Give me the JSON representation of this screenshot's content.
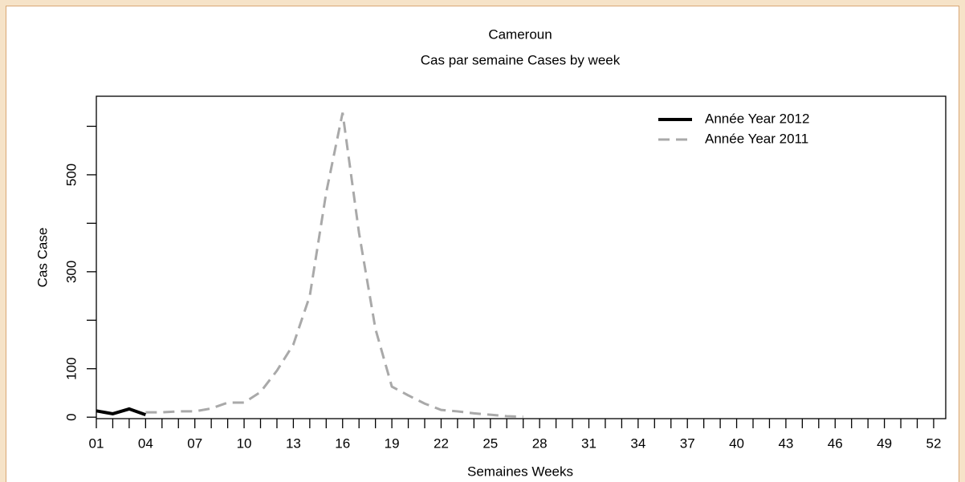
{
  "chart_data": {
    "type": "line",
    "title": "Cameroun",
    "subtitle": "Cas par semaine Cases by week",
    "x_label": "Semaines Weeks",
    "y_label": "Cas Case",
    "categories": [
      "01",
      null,
      null,
      "04",
      null,
      null,
      "07",
      null,
      null,
      "10",
      null,
      null,
      "13",
      null,
      null,
      "16",
      null,
      null,
      "19",
      null,
      null,
      "22",
      null,
      null,
      "25",
      null,
      null,
      "28",
      null,
      null,
      "31",
      null,
      null,
      "34",
      null,
      null,
      "37",
      null,
      null,
      "40",
      null,
      null,
      "43",
      null,
      null,
      "46",
      null,
      null,
      "49",
      null,
      null,
      "52"
    ],
    "series": [
      {
        "name": "Année Year 2012",
        "color": "#000000",
        "dash": false,
        "values": [
          13,
          7,
          17,
          5,
          null,
          null,
          null,
          null,
          null,
          null,
          null,
          null,
          null,
          null,
          null,
          null,
          null,
          null,
          null,
          null,
          null,
          null,
          null,
          null,
          null,
          null,
          null,
          null,
          null,
          null,
          null,
          null,
          null,
          null,
          null,
          null,
          null,
          null,
          null,
          null,
          null,
          null,
          null,
          null,
          null,
          null,
          null,
          null,
          null,
          null,
          null,
          null
        ]
      },
      {
        "name": "Année Year 2011",
        "color": "#a9a9a9",
        "dash": true,
        "values": [
          null,
          null,
          null,
          10,
          10,
          12,
          12,
          18,
          30,
          30,
          52,
          96,
          150,
          250,
          463,
          628,
          380,
          182,
          63,
          45,
          28,
          15,
          12,
          8,
          5,
          2,
          1,
          null,
          null,
          null,
          null,
          null,
          null,
          null,
          null,
          null,
          null,
          null,
          null,
          null,
          null,
          null,
          null,
          null,
          null,
          null,
          null,
          null,
          null,
          null,
          null,
          null
        ]
      }
    ],
    "ylim": [
      -3,
      662
    ],
    "yticks": [
      0,
      100,
      300,
      500
    ],
    "yminor_ticks": [
      200,
      400,
      600
    ],
    "legend": "upper right"
  }
}
